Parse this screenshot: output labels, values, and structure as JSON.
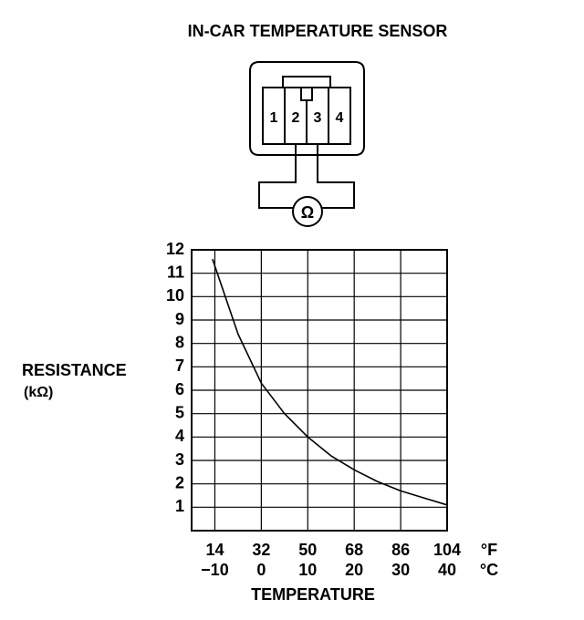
{
  "chart_data": {
    "type": "line",
    "title": "IN-CAR TEMPERATURE SENSOR",
    "connector": {
      "pins": [
        "1",
        "2",
        "3",
        "4"
      ],
      "meter": "Ω"
    },
    "ylabel": "RESISTANCE",
    "ylabel_unit": "(kΩ)",
    "xlabel": "TEMPERATURE",
    "x_unit": "°C",
    "x2_unit": "°F",
    "x": [
      -10.5,
      -5,
      0,
      5,
      10,
      15,
      20,
      25,
      30,
      35,
      40
    ],
    "values": [
      11.6,
      8.4,
      6.3,
      5.0,
      4.0,
      3.2,
      2.6,
      2.1,
      1.7,
      1.4,
      1.1
    ],
    "color": "#000000",
    "xlim": [
      -15,
      40
    ],
    "xticks": [
      {
        "value": -10,
        "label": "−10"
      },
      0,
      10,
      20,
      30,
      40
    ],
    "x2lim": [
      5,
      104
    ],
    "x2ticks": [
      14,
      32,
      50,
      68,
      86,
      104
    ],
    "ylim": [
      0,
      12
    ],
    "yticks": [
      1,
      2,
      3,
      4,
      5,
      6,
      7,
      8,
      9,
      10,
      11,
      12
    ],
    "grid": true
  }
}
